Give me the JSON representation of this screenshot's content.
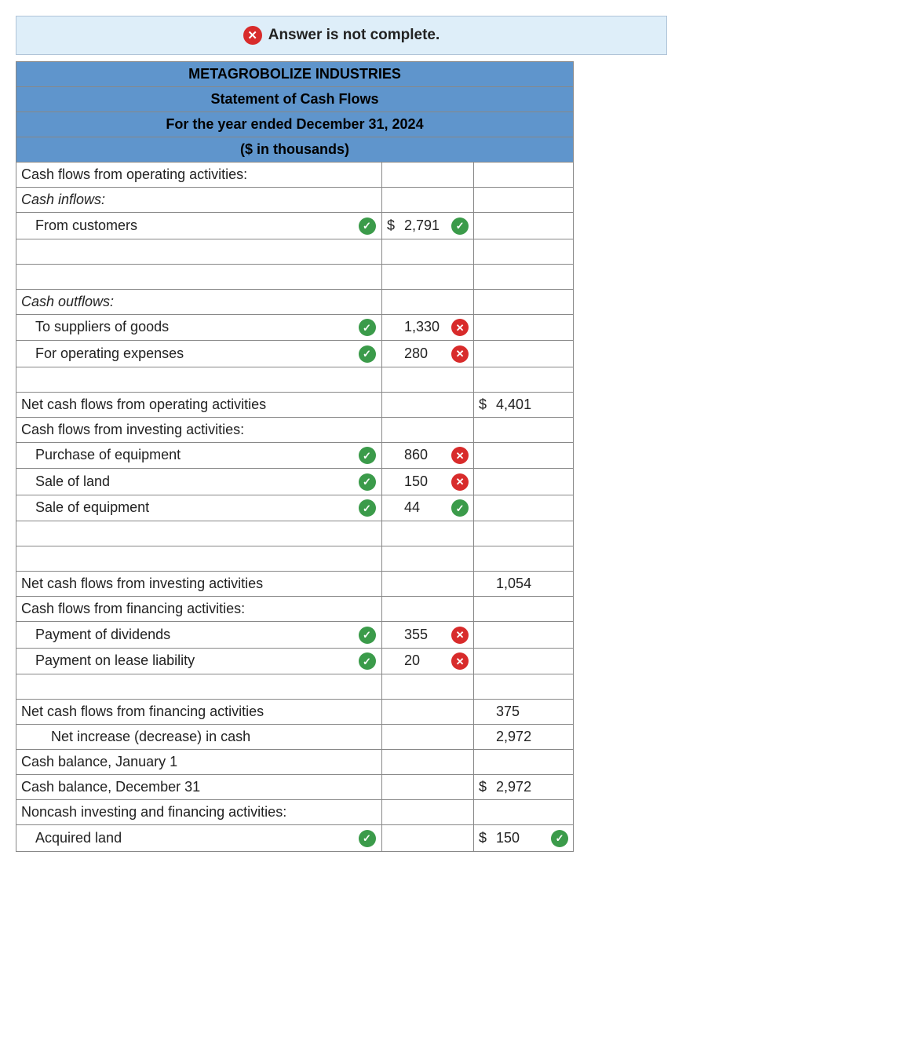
{
  "alert": {
    "text": "Answer is not complete."
  },
  "header": {
    "company": "METAGROBOLIZE INDUSTRIES",
    "title": "Statement of Cash Flows",
    "period": "For the year ended December 31, 2024",
    "units": "($ in thousands)"
  },
  "labels": {
    "op_header": "Cash flows from operating activities:",
    "inflows": "Cash inflows:",
    "from_customers": "From customers",
    "outflows": "Cash outflows:",
    "to_suppliers": "To suppliers of goods",
    "for_opex": "For operating expenses",
    "net_op": "Net cash flows from operating activities",
    "inv_header": "Cash flows from investing activities:",
    "purchase_equip": "Purchase of equipment",
    "sale_land": "Sale of land",
    "sale_equip": "Sale of equipment",
    "net_inv": "Net cash flows from investing activities",
    "fin_header": "Cash flows from financing activities:",
    "pay_div": "Payment of dividends",
    "pay_lease": "Payment on lease liability",
    "net_fin": "Net cash flows from financing activities",
    "net_change": "Net increase (decrease) in cash",
    "beg_bal": "Cash balance, January 1",
    "end_bal": "Cash balance, December 31",
    "noncash": "Noncash investing and financing activities:",
    "acq_land": "Acquired land"
  },
  "values": {
    "from_customers": "2,791",
    "to_suppliers": "1,330",
    "for_opex": "280",
    "net_op": "4,401",
    "purchase_equip": "860",
    "sale_land": "150",
    "sale_equip": "44",
    "net_inv": "1,054",
    "pay_div": "355",
    "pay_lease": "20",
    "net_fin": "375",
    "net_change": "2,972",
    "end_bal": "2,972",
    "acq_land": "150"
  },
  "symbols": {
    "dollar": "$"
  },
  "colors": {
    "header_bg": "#5f95cc",
    "alert_bg": "#deeef9",
    "check_bg": "#3b9b4a",
    "cross_bg": "#d82b2b",
    "border": "#888888"
  }
}
